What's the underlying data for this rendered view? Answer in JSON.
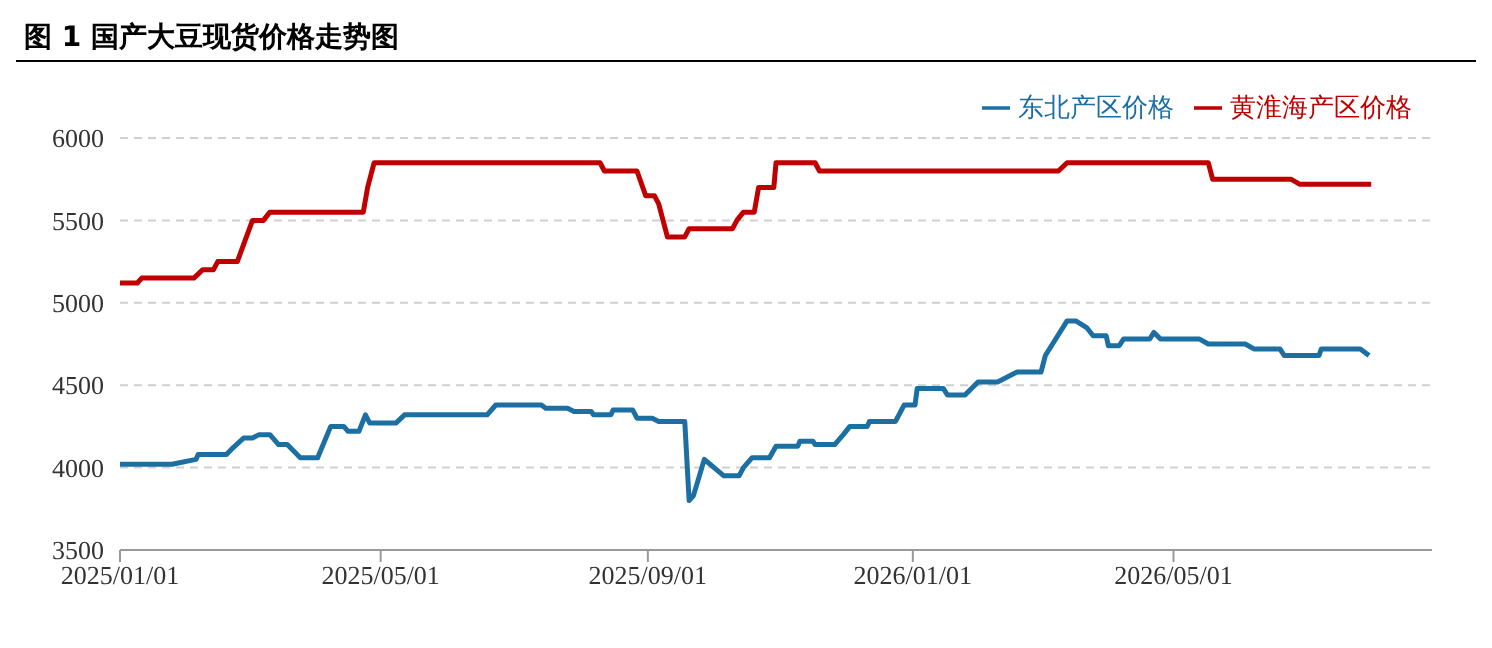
{
  "chart_data": {
    "type": "line",
    "title": "图 1  国产大豆现货价格走势图",
    "legend": "top right",
    "grid": "y",
    "line_style": "solid",
    "marker": "none",
    "xlim": [
      "2025-01-01",
      "2026-08-28"
    ],
    "xticks": [
      {
        "value": "2025-01-01",
        "label": "2025/01/01"
      },
      {
        "value": "2025-05-01",
        "label": "2025/05/01"
      },
      {
        "value": "2025-09-01",
        "label": "2025/09/01"
      },
      {
        "value": "2026-01-01",
        "label": "2026/01/01"
      },
      {
        "value": "2026-05-01",
        "label": "2026/05/01"
      }
    ],
    "ylim": [
      3500,
      6000
    ],
    "yticks": [
      3500,
      4000,
      4500,
      5000,
      5500,
      6000
    ],
    "series": [
      {
        "name": "东北产区价格",
        "color": "#1b6fa3",
        "x": [
          "2025-01-01",
          "2025-01-25",
          "2025-02-05",
          "2025-02-06",
          "2025-02-19",
          "2025-02-22",
          "2025-02-27",
          "2025-03-03",
          "2025-03-06",
          "2025-03-11",
          "2025-03-15",
          "2025-03-19",
          "2025-03-25",
          "2025-04-02",
          "2025-04-08",
          "2025-04-14",
          "2025-04-16",
          "2025-04-21",
          "2025-04-24",
          "2025-04-26",
          "2025-05-08",
          "2025-05-12",
          "2025-06-19",
          "2025-06-23",
          "2025-07-14",
          "2025-07-16",
          "2025-07-26",
          "2025-07-29",
          "2025-08-06",
          "2025-08-07",
          "2025-08-15",
          "2025-08-16",
          "2025-08-25",
          "2025-08-27",
          "2025-09-03",
          "2025-09-06",
          "2025-09-18",
          "2025-09-20",
          "2025-09-22",
          "2025-09-27",
          "2025-10-06",
          "2025-10-13",
          "2025-10-15",
          "2025-10-19",
          "2025-10-27",
          "2025-10-30",
          "2025-11-09",
          "2025-11-10",
          "2025-11-16",
          "2025-11-17",
          "2025-11-26",
          "2025-11-30",
          "2025-12-03",
          "2025-12-11",
          "2025-12-12",
          "2025-12-24",
          "2025-12-28",
          "2026-01-02",
          "2026-01-03",
          "2026-01-15",
          "2026-01-17",
          "2026-01-25",
          "2026-01-31",
          "2026-02-09",
          "2026-02-18",
          "2026-03-01",
          "2026-03-03",
          "2026-03-13",
          "2026-03-17",
          "2026-03-22",
          "2026-03-25",
          "2026-03-31",
          "2026-04-01",
          "2026-04-06",
          "2026-04-08",
          "2026-04-20",
          "2026-04-22",
          "2026-04-25",
          "2026-05-13",
          "2026-05-17",
          "2026-06-03",
          "2026-06-07",
          "2026-06-19",
          "2026-06-21",
          "2026-07-07",
          "2026-07-08",
          "2026-07-26",
          "2026-07-30"
        ],
        "values": [
          4020,
          4020,
          4050,
          4080,
          4080,
          4120,
          4180,
          4180,
          4200,
          4200,
          4140,
          4140,
          4060,
          4060,
          4250,
          4250,
          4220,
          4220,
          4320,
          4270,
          4270,
          4320,
          4320,
          4380,
          4380,
          4360,
          4360,
          4340,
          4340,
          4320,
          4320,
          4350,
          4350,
          4300,
          4300,
          4280,
          4280,
          3800,
          3830,
          4050,
          3950,
          3950,
          4000,
          4060,
          4060,
          4130,
          4130,
          4160,
          4160,
          4140,
          4140,
          4200,
          4250,
          4250,
          4280,
          4280,
          4380,
          4380,
          4480,
          4480,
          4440,
          4440,
          4520,
          4520,
          4580,
          4580,
          4680,
          4890,
          4890,
          4850,
          4800,
          4800,
          4740,
          4740,
          4780,
          4780,
          4820,
          4780,
          4780,
          4750,
          4750,
          4720,
          4720,
          4680,
          4680,
          4720,
          4720,
          4680
        ]
      },
      {
        "name": "黄淮海产区价格",
        "color": "#c00000",
        "x": [
          "2025-01-01",
          "2025-01-09",
          "2025-01-11",
          "2025-02-04",
          "2025-02-08",
          "2025-02-13",
          "2025-02-15",
          "2025-02-24",
          "2025-03-03",
          "2025-03-08",
          "2025-03-11",
          "2025-04-23",
          "2025-04-25",
          "2025-04-28",
          "2025-08-10",
          "2025-08-12",
          "2025-08-27",
          "2025-08-31",
          "2025-09-04",
          "2025-09-06",
          "2025-09-10",
          "2025-09-18",
          "2025-09-20",
          "2025-10-10",
          "2025-10-12",
          "2025-10-15",
          "2025-10-20",
          "2025-10-22",
          "2025-10-29",
          "2025-10-30",
          "2025-11-17",
          "2025-11-19",
          "2026-03-09",
          "2026-03-13",
          "2026-05-17",
          "2026-05-19",
          "2026-06-24",
          "2026-06-28",
          "2026-07-31"
        ],
        "values": [
          5120,
          5120,
          5150,
          5150,
          5200,
          5200,
          5250,
          5250,
          5500,
          5500,
          5550,
          5550,
          5700,
          5850,
          5850,
          5800,
          5800,
          5650,
          5650,
          5600,
          5400,
          5400,
          5450,
          5450,
          5500,
          5550,
          5550,
          5700,
          5700,
          5850,
          5850,
          5800,
          5800,
          5850,
          5850,
          5750,
          5750,
          5720,
          5720
        ]
      }
    ]
  }
}
